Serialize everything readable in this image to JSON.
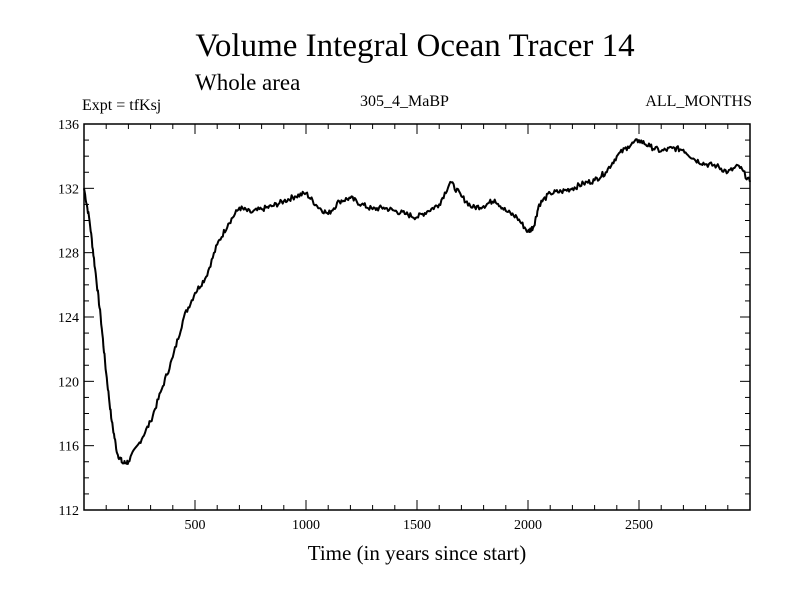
{
  "chart_data": {
    "type": "line",
    "title": "Volume Integral Ocean Tracer 14",
    "subtitle": "Whole area",
    "expt_label": "Expt = tfKsj",
    "center_label": "305_4_MaBP",
    "right_label": "ALL_MONTHS",
    "xlabel": "Time (in years since start)",
    "ylabel": "",
    "xlim": [
      0,
      3000
    ],
    "ylim": [
      112,
      136
    ],
    "xticks": [
      500,
      1000,
      1500,
      2000,
      2500
    ],
    "yticks": [
      112,
      116,
      120,
      124,
      128,
      132,
      136
    ],
    "grid": false,
    "series": [
      {
        "name": "Volume Integral Ocean Tracer 14",
        "x": [
          0,
          25,
          50,
          75,
          100,
          125,
          150,
          175,
          200,
          250,
          300,
          350,
          400,
          450,
          500,
          550,
          600,
          650,
          700,
          750,
          800,
          850,
          900,
          950,
          1000,
          1050,
          1100,
          1150,
          1200,
          1250,
          1300,
          1350,
          1400,
          1450,
          1500,
          1550,
          1600,
          1650,
          1700,
          1750,
          1800,
          1850,
          1900,
          1950,
          2000,
          2025,
          2050,
          2100,
          2150,
          2200,
          2250,
          2300,
          2350,
          2400,
          2450,
          2500,
          2550,
          2600,
          2650,
          2700,
          2750,
          2800,
          2850,
          2900,
          2950,
          3000
        ],
        "values": [
          132,
          130,
          127,
          124,
          120.5,
          117.5,
          115.5,
          114.9,
          115,
          116.2,
          117.5,
          119.5,
          121.5,
          124,
          125.5,
          126.5,
          128.5,
          129.8,
          130.8,
          130.5,
          130.7,
          130.9,
          131.2,
          131.5,
          131.7,
          130.9,
          130.4,
          131.2,
          131.4,
          131,
          130.7,
          130.8,
          130.6,
          130.4,
          130.2,
          130.6,
          131,
          132.4,
          131.5,
          130.8,
          130.9,
          131.3,
          130.6,
          130.2,
          129.3,
          129.6,
          131,
          131.7,
          131.8,
          132,
          132.3,
          132.5,
          133,
          134,
          134.6,
          135,
          134.6,
          134.3,
          134.5,
          134.4,
          133.8,
          133.5,
          133.4,
          133,
          133.4,
          132.4
        ]
      }
    ]
  }
}
